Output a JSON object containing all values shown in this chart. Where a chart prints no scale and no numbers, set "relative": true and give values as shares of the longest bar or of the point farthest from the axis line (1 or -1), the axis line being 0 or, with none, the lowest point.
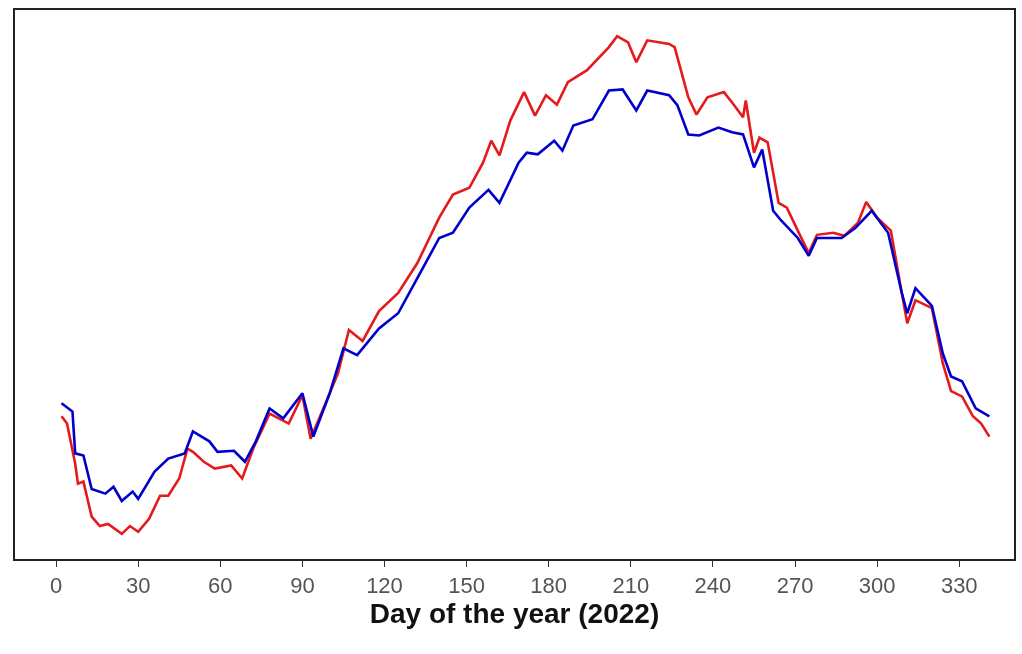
{
  "chart_data": {
    "type": "line",
    "xlabel": "Day of the year (2022)",
    "relative": true,
    "tick_labels": "x",
    "line_style": "solid",
    "marker": "none",
    "xlim": [
      -15,
      350
    ],
    "xticks": [
      0,
      30,
      60,
      90,
      120,
      150,
      180,
      210,
      240,
      270,
      300,
      330
    ],
    "series": [
      {
        "color": "#e41a1c",
        "x": [
          2,
          4,
          7,
          8,
          10,
          13,
          16,
          19,
          24,
          27,
          30,
          34,
          38,
          41,
          45,
          48,
          50,
          54,
          58,
          64,
          68,
          72,
          78,
          85,
          90,
          93,
          98,
          103,
          107,
          112,
          118,
          125,
          132,
          140,
          145,
          151,
          156,
          159,
          162,
          166,
          171,
          175,
          179,
          183,
          187,
          194,
          202,
          205,
          209,
          212,
          216,
          224,
          226,
          231,
          234,
          238,
          244,
          247,
          251,
          252,
          255,
          257,
          260,
          264,
          267,
          271,
          275,
          278,
          284,
          288,
          293,
          296,
          300,
          305,
          309,
          311,
          314,
          320,
          324,
          327,
          331,
          335,
          338,
          341
        ],
        "values": [
          0.273,
          0.259,
          0.182,
          0.144,
          0.148,
          0.081,
          0.063,
          0.067,
          0.048,
          0.063,
          0.052,
          0.077,
          0.121,
          0.121,
          0.154,
          0.211,
          0.205,
          0.186,
          0.173,
          0.179,
          0.154,
          0.211,
          0.278,
          0.259,
          0.313,
          0.23,
          0.292,
          0.355,
          0.438,
          0.417,
          0.474,
          0.509,
          0.566,
          0.653,
          0.697,
          0.71,
          0.758,
          0.8,
          0.772,
          0.839,
          0.893,
          0.848,
          0.887,
          0.869,
          0.912,
          0.935,
          0.979,
          1.0,
          0.988,
          0.95,
          0.992,
          0.985,
          0.979,
          0.883,
          0.85,
          0.883,
          0.893,
          0.873,
          0.845,
          0.877,
          0.777,
          0.806,
          0.797,
          0.681,
          0.672,
          0.628,
          0.585,
          0.62,
          0.624,
          0.618,
          0.643,
          0.683,
          0.653,
          0.628,
          0.509,
          0.451,
          0.495,
          0.48,
          0.374,
          0.321,
          0.311,
          0.273,
          0.259,
          0.234
        ]
      },
      {
        "color": "#0000cd",
        "x": [
          2,
          6,
          7,
          10,
          13,
          18,
          21,
          24,
          28,
          30,
          36,
          41,
          47,
          50,
          56,
          59,
          65,
          69,
          73,
          78,
          83,
          90,
          94,
          100,
          105,
          110,
          118,
          125,
          132,
          140,
          145,
          151,
          158,
          162,
          169,
          172,
          176,
          182,
          185,
          189,
          196,
          202,
          207,
          212,
          216,
          224,
          227,
          231,
          235,
          242,
          247,
          251,
          255,
          258,
          262,
          265,
          271,
          275,
          278,
          287,
          292,
          298,
          304,
          309,
          311,
          314,
          320,
          324,
          327,
          331,
          336,
          341
        ],
        "values": [
          0.298,
          0.282,
          0.202,
          0.198,
          0.134,
          0.125,
          0.138,
          0.111,
          0.129,
          0.115,
          0.167,
          0.192,
          0.202,
          0.244,
          0.225,
          0.205,
          0.207,
          0.186,
          0.225,
          0.288,
          0.269,
          0.317,
          0.234,
          0.317,
          0.403,
          0.39,
          0.441,
          0.47,
          0.537,
          0.614,
          0.624,
          0.672,
          0.706,
          0.681,
          0.758,
          0.777,
          0.774,
          0.8,
          0.781,
          0.829,
          0.841,
          0.896,
          0.898,
          0.858,
          0.896,
          0.887,
          0.868,
          0.812,
          0.81,
          0.825,
          0.816,
          0.812,
          0.749,
          0.783,
          0.666,
          0.647,
          0.614,
          0.58,
          0.614,
          0.614,
          0.633,
          0.666,
          0.624,
          0.509,
          0.47,
          0.518,
          0.484,
          0.393,
          0.349,
          0.34,
          0.288,
          0.273
        ]
      }
    ]
  }
}
